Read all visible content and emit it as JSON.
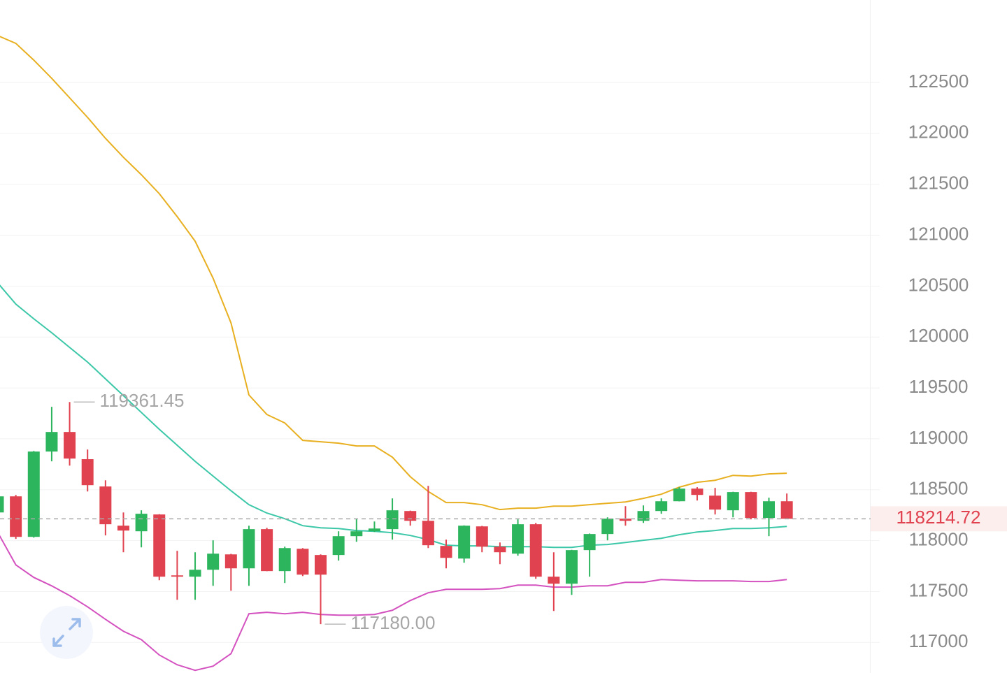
{
  "chart_data": {
    "type": "candlestick",
    "up_color": "#2db55d",
    "down_color": "#e0424f",
    "ylim": [
      116700,
      123310
    ],
    "yticks": [
      117000,
      117500,
      118000,
      118500,
      119000,
      119500,
      120000,
      120500,
      121000,
      121500,
      122000,
      122500
    ],
    "grid": true,
    "open": [
      118277,
      118435,
      118037,
      118875,
      119067,
      118800,
      118532,
      118147,
      118092,
      118257,
      117659,
      117646,
      117714,
      117865,
      117728,
      118113,
      117701,
      117920,
      117859,
      117859,
      118044,
      118092,
      118113,
      118291,
      118195,
      117948,
      117824,
      118140,
      117941,
      117872,
      118161,
      117646,
      117577,
      117907,
      118065,
      118216,
      118195,
      118291,
      118387,
      118511,
      118442,
      118298,
      118477,
      118223,
      118387
    ],
    "high": [
      118445,
      118449,
      118880,
      119314,
      119361.45,
      118895,
      118593,
      118277,
      118298,
      118260,
      117900,
      117886,
      118003,
      117870,
      118147,
      118126,
      117941,
      117927,
      117865,
      118092,
      118216,
      118188,
      118415,
      118295,
      118538,
      118010,
      118150,
      118145,
      117982,
      118209,
      118174,
      117886,
      117910,
      118070,
      118229,
      118339,
      118346,
      118415,
      118525,
      118525,
      118518,
      118480,
      118480,
      118422,
      118463
    ],
    "low": [
      118270,
      118017,
      118030,
      118779,
      118737,
      118483,
      118051,
      117886,
      117934,
      117611,
      117419,
      117419,
      117556,
      117508,
      117556,
      117700,
      117584,
      117652,
      117180,
      117804,
      117989,
      118085,
      118010,
      118147,
      117927,
      117728,
      117783,
      117886,
      117769,
      117852,
      117625,
      117309,
      117467,
      117646,
      118003,
      118147,
      118174,
      118264,
      118385,
      118394,
      118257,
      118229,
      118209,
      118044,
      118210
    ],
    "close": [
      118435,
      118037,
      118875,
      119067,
      118806,
      118545,
      118161,
      118099,
      118264,
      117646,
      117646,
      117714,
      117872,
      117728,
      118113,
      117701,
      117927,
      117666,
      117666,
      118044,
      118092,
      118119,
      118298,
      118195,
      117955,
      117831,
      118147,
      117941,
      117886,
      118161,
      117646,
      117577,
      117907,
      118065,
      118216,
      118195,
      118291,
      118387,
      118511,
      118449,
      118305,
      118477,
      118223,
      118387,
      118214.72
    ],
    "series": [
      {
        "color": "#e8b021",
        "values": [
          122960,
          122884,
          122720,
          122541,
          122349,
          122157,
          121951,
          121765,
          121594,
          121408,
          121182,
          120941,
          120578,
          120138,
          119431,
          119239,
          119156,
          118985,
          118971,
          118957,
          118930,
          118930,
          118820,
          118628,
          118483,
          118374,
          118374,
          118353,
          118305,
          118319,
          118319,
          118339,
          118339,
          118353,
          118367,
          118380,
          118415,
          118456,
          118525,
          118573,
          118593,
          118641,
          118634,
          118655,
          118662
        ]
      },
      {
        "color": "#3cc8a8",
        "values": [
          120529,
          120323,
          120179,
          120042,
          119898,
          119754,
          119589,
          119424,
          119259,
          119094,
          118937,
          118779,
          118634,
          118490,
          118353,
          118271,
          118216,
          118147,
          118126,
          118119,
          118099,
          118092,
          118078,
          118051,
          118010,
          117955,
          117948,
          117948,
          117941,
          117941,
          117941,
          117934,
          117934,
          117955,
          117962,
          117982,
          118003,
          118023,
          118058,
          118085,
          118099,
          118119,
          118119,
          118126,
          118140
        ]
      },
      {
        "color": "#d452c0",
        "values": [
          118078,
          117762,
          117639,
          117556,
          117460,
          117350,
          117227,
          117110,
          117028,
          116877,
          116781,
          116726,
          116767,
          116890,
          117282,
          117296,
          117282,
          117296,
          117275,
          117268,
          117268,
          117275,
          117316,
          117412,
          117488,
          117522,
          117522,
          117522,
          117529,
          117563,
          117563,
          117543,
          117543,
          117556,
          117556,
          117591,
          117591,
          117618,
          117611,
          117605,
          117605,
          117605,
          117598,
          117598,
          117618
        ]
      }
    ],
    "annotations": [
      {
        "value": 119361.45,
        "label": "119361.45"
      },
      {
        "value": 117180,
        "label": "117180.00"
      }
    ],
    "last_price": {
      "value": 118214.72,
      "label": "118214.72"
    }
  }
}
